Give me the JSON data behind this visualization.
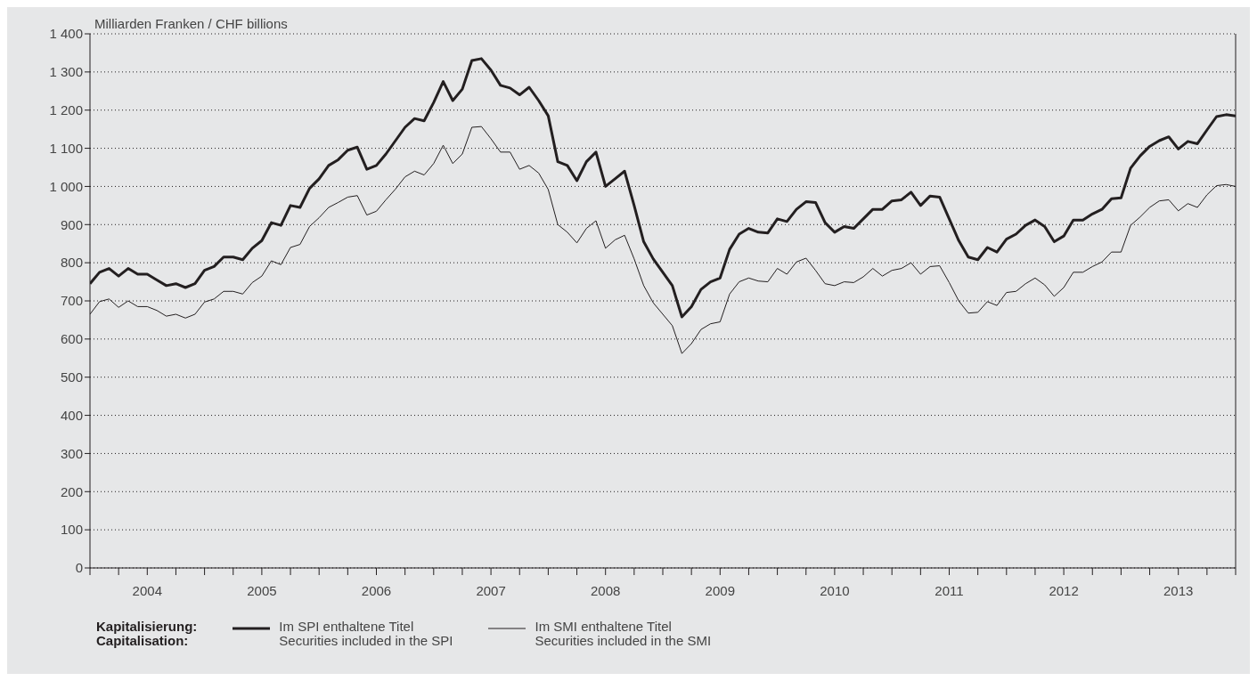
{
  "chart_data": {
    "type": "line",
    "ylabel": "Milliarden Franken / CHF billions",
    "legend_title": "Kapitalisierung:\nCapitalisation:",
    "x": [
      "2004-01",
      "2004-02",
      "2004-03",
      "2004-04",
      "2004-05",
      "2004-06",
      "2004-07",
      "2004-08",
      "2004-09",
      "2004-10",
      "2004-11",
      "2004-12",
      "2005-01",
      "2005-02",
      "2005-03",
      "2005-04",
      "2005-05",
      "2005-06",
      "2005-07",
      "2005-08",
      "2005-09",
      "2005-10",
      "2005-11",
      "2005-12",
      "2006-01",
      "2006-02",
      "2006-03",
      "2006-04",
      "2006-05",
      "2006-06",
      "2006-07",
      "2006-08",
      "2006-09",
      "2006-10",
      "2006-11",
      "2006-12",
      "2007-01",
      "2007-02",
      "2007-03",
      "2007-04",
      "2007-05",
      "2007-06",
      "2007-07",
      "2007-08",
      "2007-09",
      "2007-10",
      "2007-11",
      "2007-12",
      "2008-01",
      "2008-02",
      "2008-03",
      "2008-04",
      "2008-05",
      "2008-06",
      "2008-07",
      "2008-08",
      "2008-09",
      "2008-10",
      "2008-11",
      "2008-12",
      "2009-01",
      "2009-02",
      "2009-03",
      "2009-04",
      "2009-05",
      "2009-06",
      "2009-07",
      "2009-08",
      "2009-09",
      "2009-10",
      "2009-11",
      "2009-12",
      "2010-01",
      "2010-02",
      "2010-03",
      "2010-04",
      "2010-05",
      "2010-06",
      "2010-07",
      "2010-08",
      "2010-09",
      "2010-10",
      "2010-11",
      "2010-12",
      "2011-01",
      "2011-02",
      "2011-03",
      "2011-04",
      "2011-05",
      "2011-06",
      "2011-07",
      "2011-08",
      "2011-09",
      "2011-10",
      "2011-11",
      "2011-12",
      "2012-01",
      "2012-02",
      "2012-03",
      "2012-04",
      "2012-05",
      "2012-06",
      "2012-07",
      "2012-08",
      "2012-09",
      "2012-10",
      "2012-11",
      "2012-12",
      "2013-01",
      "2013-02",
      "2013-03",
      "2013-04",
      "2013-05",
      "2013-06",
      "2013-07",
      "2013-08",
      "2013-09",
      "2013-10",
      "2013-11",
      "2013-12",
      "2014-01"
    ],
    "series": [
      {
        "name": "Im SPI enthaltene Titel\nSecurities included in the SPI",
        "color": "#231f20",
        "values": [
          745,
          775,
          785,
          765,
          785,
          770,
          770,
          755,
          740,
          745,
          735,
          745,
          780,
          790,
          815,
          815,
          808,
          838,
          858,
          905,
          898,
          950,
          945,
          995,
          1020,
          1055,
          1070,
          1095,
          1103,
          1045,
          1055,
          1085,
          1120,
          1155,
          1178,
          1172,
          1220,
          1275,
          1225,
          1255,
          1330,
          1335,
          1305,
          1265,
          1258,
          1240,
          1260,
          1225,
          1185,
          1065,
          1055,
          1015,
          1065,
          1090,
          1000,
          1020,
          1040,
          950,
          855,
          810,
          775,
          740,
          658,
          685,
          730,
          750,
          760,
          835,
          875,
          890,
          880,
          878,
          915,
          908,
          940,
          960,
          958,
          905,
          880,
          895,
          890,
          915,
          940,
          940,
          962,
          965,
          985,
          950,
          975,
          972,
          915,
          858,
          815,
          808,
          840,
          828,
          862,
          875,
          898,
          912,
          895,
          855,
          870,
          912,
          912,
          928,
          940,
          968,
          970,
          1048,
          1080,
          1105,
          1120,
          1130,
          1098,
          1118,
          1112,
          1148,
          1183,
          1188,
          1185
        ]
      },
      {
        "name": "Im SMI enthaltene Titel\nSecurities included in the SMI",
        "color": "#231f20",
        "values": [
          665,
          698,
          705,
          683,
          700,
          685,
          685,
          675,
          660,
          665,
          655,
          665,
          697,
          705,
          725,
          725,
          718,
          748,
          765,
          805,
          795,
          840,
          848,
          895,
          918,
          945,
          958,
          972,
          976,
          925,
          935,
          965,
          993,
          1025,
          1040,
          1030,
          1060,
          1108,
          1060,
          1085,
          1155,
          1157,
          1125,
          1090,
          1090,
          1045,
          1055,
          1035,
          992,
          900,
          880,
          852,
          890,
          910,
          838,
          860,
          872,
          810,
          740,
          695,
          665,
          635,
          562,
          588,
          625,
          640,
          645,
          718,
          750,
          760,
          752,
          750,
          785,
          770,
          802,
          812,
          780,
          745,
          740,
          750,
          748,
          763,
          785,
          765,
          780,
          785,
          800,
          770,
          790,
          792,
          748,
          700,
          668,
          670,
          698,
          688,
          722,
          725,
          745,
          760,
          742,
          712,
          735,
          775,
          775,
          790,
          802,
          828,
          828,
          898,
          920,
          945,
          962,
          965,
          936,
          955,
          945,
          978,
          1002,
          1005,
          1000
        ]
      }
    ],
    "xlim": [
      "2004-01",
      "2014-01"
    ],
    "xticks": [
      {
        "value": "2004-01",
        "label": null
      },
      {
        "value": "2004-04",
        "label": null
      },
      {
        "value": "2004-07",
        "label": "2004"
      },
      {
        "value": "2004-10",
        "label": null
      },
      {
        "value": "2005-01",
        "label": null
      },
      {
        "value": "2005-04",
        "label": null
      },
      {
        "value": "2005-07",
        "label": "2005"
      },
      {
        "value": "2005-10",
        "label": null
      },
      {
        "value": "2006-01",
        "label": null
      },
      {
        "value": "2006-04",
        "label": null
      },
      {
        "value": "2006-07",
        "label": "2006"
      },
      {
        "value": "2006-10",
        "label": null
      },
      {
        "value": "2007-01",
        "label": null
      },
      {
        "value": "2007-04",
        "label": null
      },
      {
        "value": "2007-07",
        "label": "2007"
      },
      {
        "value": "2007-10",
        "label": null
      },
      {
        "value": "2008-01",
        "label": null
      },
      {
        "value": "2008-04",
        "label": null
      },
      {
        "value": "2008-07",
        "label": "2008"
      },
      {
        "value": "2008-10",
        "label": null
      },
      {
        "value": "2009-01",
        "label": null
      },
      {
        "value": "2009-04",
        "label": null
      },
      {
        "value": "2009-07",
        "label": "2009"
      },
      {
        "value": "2009-10",
        "label": null
      },
      {
        "value": "2010-01",
        "label": null
      },
      {
        "value": "2010-04",
        "label": null
      },
      {
        "value": "2010-07",
        "label": "2010"
      },
      {
        "value": "2010-10",
        "label": null
      },
      {
        "value": "2011-01",
        "label": null
      },
      {
        "value": "2011-04",
        "label": null
      },
      {
        "value": "2011-07",
        "label": "2011"
      },
      {
        "value": "2011-10",
        "label": null
      },
      {
        "value": "2012-01",
        "label": null
      },
      {
        "value": "2012-04",
        "label": null
      },
      {
        "value": "2012-07",
        "label": "2012"
      },
      {
        "value": "2012-10",
        "label": null
      },
      {
        "value": "2013-01",
        "label": null
      },
      {
        "value": "2013-04",
        "label": null
      },
      {
        "value": "2013-07",
        "label": "2013"
      },
      {
        "value": "2013-10",
        "label": null
      },
      {
        "value": "2014-01",
        "label": null
      }
    ],
    "ylim": [
      0,
      1400
    ],
    "yticks": [
      0,
      100,
      200,
      300,
      400,
      500,
      600,
      700,
      800,
      900,
      {
        "value": 1000,
        "label": "1 000"
      },
      {
        "value": 1100,
        "label": "1 100"
      },
      {
        "value": 1200,
        "label": "1 200"
      },
      {
        "value": 1300,
        "label": "1 300"
      },
      {
        "value": 1400,
        "label": "1 400"
      }
    ],
    "grid": "y",
    "legend": "bottom",
    "marker": "none",
    "line_style": "solid"
  }
}
